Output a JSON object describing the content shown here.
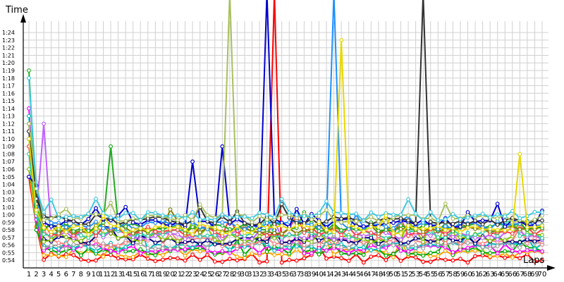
{
  "chart_data": {
    "type": "line",
    "ylabel": "Time",
    "xlabel": "Laps",
    "grid": true,
    "legend": "none",
    "x_range": [
      1,
      70
    ],
    "y_range_seconds": [
      53,
      85.5
    ],
    "y_ticks": [
      "0:54",
      "0:55",
      "0:56",
      "0:57",
      "0:58",
      "0:59",
      "1:00",
      "1:01",
      "1:02",
      "1:03",
      "1:04",
      "1:05",
      "1:06",
      "1:07",
      "1:08",
      "1:09",
      "1:10",
      "1:11",
      "1:12",
      "1:13",
      "1:14",
      "1:15",
      "1:16",
      "1:17",
      "1:18",
      "1:19",
      "1:20",
      "1:21",
      "1:22",
      "1:23",
      "1:24"
    ],
    "x_ticks": [
      1,
      2,
      3,
      4,
      5,
      6,
      7,
      8,
      9,
      10,
      11,
      12,
      13,
      14,
      15,
      16,
      17,
      18,
      19,
      20,
      21,
      22,
      23,
      24,
      25,
      26,
      27,
      28,
      29,
      30,
      31,
      32,
      33,
      34,
      35,
      36,
      37,
      38,
      39,
      40,
      41,
      42,
      43,
      44,
      45,
      46,
      47,
      48,
      49,
      50,
      51,
      52,
      53,
      54,
      55,
      56,
      57,
      58,
      59,
      60,
      61,
      62,
      63,
      64,
      65,
      66,
      67,
      68,
      69,
      70
    ],
    "series": [
      {
        "color": "#ff0000",
        "start": "1:05",
        "base": "0:54.3",
        "spikes": [
          [
            34,
            "1:30"
          ]
        ]
      },
      {
        "color": "#ffa500",
        "start": "1:06",
        "base": "0:54.9",
        "spikes": []
      },
      {
        "color": "#00aa00",
        "start": "1:12",
        "base": "0:55.2",
        "spikes": []
      },
      {
        "color": "#ff00ff",
        "start": "1:14",
        "base": "0:55.5",
        "spikes": []
      },
      {
        "color": "#00bfbf",
        "start": "1:13",
        "base": "0:55.8",
        "spikes": []
      },
      {
        "color": "#a0a0a0",
        "start": "1:09",
        "base": "0:56.1",
        "spikes": []
      },
      {
        "color": "#ff8080",
        "start": "1:12",
        "base": "0:56.4",
        "spikes": []
      },
      {
        "color": "#000080",
        "start": "1:10",
        "base": "0:56.7",
        "spikes": []
      },
      {
        "color": "#80c000",
        "start": "1:06",
        "base": "0:57.0",
        "spikes": []
      },
      {
        "color": "#c060ff",
        "start": "1:11",
        "base": "0:57.3",
        "spikes": [
          [
            3,
            "1:12"
          ]
        ]
      },
      {
        "color": "#30d0a0",
        "start": "1:08",
        "base": "0:57.5",
        "spikes": []
      },
      {
        "color": "#ff4040",
        "start": "1:09",
        "base": "0:57.8",
        "spikes": []
      },
      {
        "color": "#808000",
        "start": "1:12",
        "base": "0:58.1",
        "spikes": []
      },
      {
        "color": "#22aa22",
        "start": "1:19",
        "base": "0:58.4",
        "spikes": [
          [
            12,
            "1:09"
          ]
        ]
      },
      {
        "color": "#1e90ff",
        "start": "1:10",
        "base": "0:58.6",
        "spikes": [
          [
            42,
            "1:30"
          ]
        ]
      },
      {
        "color": "#0000cc",
        "start": "1:05",
        "base": "0:58.9",
        "spikes": [
          [
            23,
            "1:07"
          ],
          [
            27,
            "1:09"
          ],
          [
            33,
            "1:30"
          ]
        ]
      },
      {
        "color": "#333333",
        "start": "1:11",
        "base": "0:59.2",
        "spikes": [
          [
            54,
            "1:30"
          ]
        ]
      },
      {
        "color": "#a8c060",
        "start": "1:12",
        "base": "0:59.5",
        "spikes": [
          [
            28,
            "1:30"
          ]
        ]
      },
      {
        "color": "#40c8e0",
        "start": "1:18",
        "base": "0:59.8",
        "spikes": [
          [
            4,
            "1:02"
          ]
        ]
      },
      {
        "color": "#e8d800",
        "start": "1:10",
        "base": "0:58.0",
        "spikes": [
          [
            1,
            "1:30"
          ],
          [
            43,
            "1:23"
          ],
          [
            67,
            "1:08"
          ]
        ]
      }
    ]
  }
}
